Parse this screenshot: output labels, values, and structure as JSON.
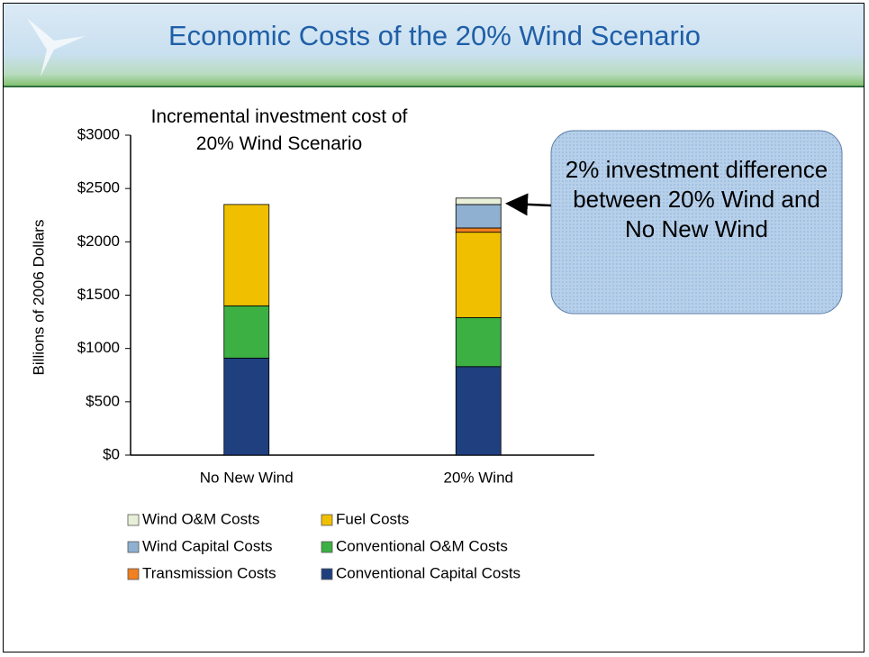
{
  "slide": {
    "title": "Economic Costs of the 20% Wind Scenario"
  },
  "chart_data": {
    "type": "stacked_bar",
    "title": "Incremental investment cost of 20% Wind Scenario",
    "y_label": "Billions of 2006 Dollars",
    "annotation": "2% investment difference between 20% Wind and No New Wind",
    "categories": [
      "No New Wind",
      "20% Wind"
    ],
    "series": [
      {
        "name": "Conventional Capital Costs",
        "color": "#1f3f7f",
        "values": [
          910,
          830
        ]
      },
      {
        "name": "Conventional O&M Costs",
        "color": "#3cb043",
        "values": [
          490,
          460
        ]
      },
      {
        "name": "Fuel Costs",
        "color": "#f0c000",
        "values": [
          950,
          800
        ]
      },
      {
        "name": "Transmission Costs",
        "color": "#f08020",
        "values": [
          0,
          40
        ]
      },
      {
        "name": "Wind Capital Costs",
        "color": "#8fb0d0",
        "values": [
          0,
          220
        ]
      },
      {
        "name": "Wind O&M Costs",
        "color": "#e8efd8",
        "values": [
          0,
          60
        ]
      }
    ],
    "ylim": [
      0,
      3000
    ],
    "yticks": [
      {
        "value": 0,
        "label": "$0"
      },
      {
        "value": 500,
        "label": "$500"
      },
      {
        "value": 1000,
        "label": "$1000"
      },
      {
        "value": 1500,
        "label": "$1500"
      },
      {
        "value": 2000,
        "label": "$2000"
      },
      {
        "value": 2500,
        "label": "$2500"
      },
      {
        "value": 3000,
        "label": "$3000"
      }
    ],
    "grid": false
  }
}
